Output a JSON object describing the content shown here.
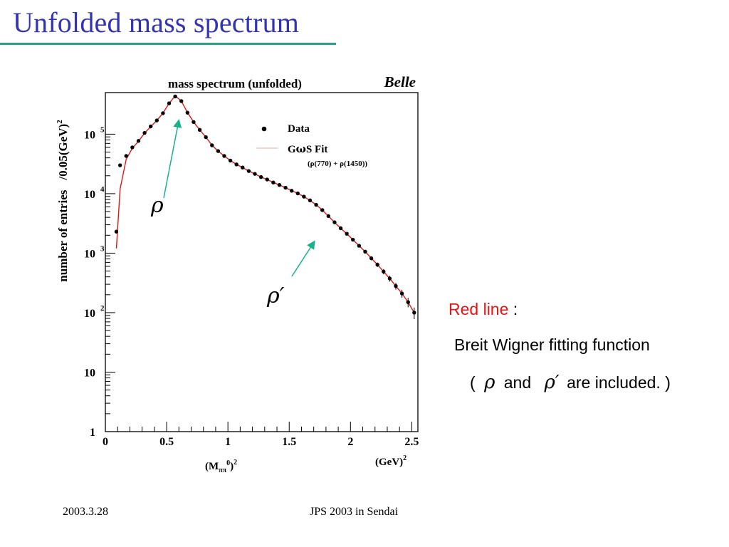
{
  "slide": {
    "title": "Unfolded mass spectrum",
    "footer_left": "2003.3.28",
    "footer_center": "JPS 2003 in Sendai"
  },
  "caption": {
    "line1_red": "Red line",
    "line1_rest": " :",
    "line2": "Breit Wigner fitting function",
    "line3_open": "(",
    "line3_rho": "ρ",
    "line3_and": "and",
    "line3_rhoprime": "ρ′",
    "line3_close": "are included. )"
  },
  "colors": {
    "title": "#3333b5",
    "rule": "#2aa089",
    "fit": "#e41414",
    "arrow": "#19b28a",
    "red_text": "#e41414"
  },
  "chart_data": {
    "type": "scatter",
    "title": "mass spectrum (unfolded)",
    "tag": "Belle",
    "ylabel_main": "number of entries",
    "ylabel_unit": "/0.05(GeV)",
    "ylabel_unit_sup": "2",
    "xlabel_left": "(M",
    "xlabel_sub": "ππ",
    "xlabel_sup0": "0",
    "xlabel_close": ")",
    "xlabel_sup2": "2",
    "xunit": "(GeV)",
    "xunit_sup": "2",
    "xlim": [
      0,
      2.55
    ],
    "ylim": [
      1,
      500000
    ],
    "yscale": "log",
    "grid": false,
    "x_ticks": [
      "0",
      "0.5",
      "1",
      "1.5",
      "2",
      "2.5"
    ],
    "x_tick_values": [
      0,
      0.5,
      1,
      1.5,
      2,
      2.5
    ],
    "y_ticks": [
      {
        "value": 1,
        "base": "1",
        "exp": ""
      },
      {
        "value": 10,
        "base": "10",
        "exp": ""
      },
      {
        "value": 100,
        "base": "10",
        "exp": "2"
      },
      {
        "value": 1000,
        "base": "10",
        "exp": "3"
      },
      {
        "value": 10000,
        "base": "10",
        "exp": "4"
      },
      {
        "value": 100000,
        "base": "10",
        "exp": "5"
      }
    ],
    "legend": {
      "position": "top-right",
      "data_label": "Data",
      "fit_label_pre": "G",
      "fit_label_omega": "ω",
      "fit_label_post": "S Fit",
      "fit_note": "(ρ(770) + ρ(1450))"
    },
    "annotations": [
      {
        "label": "ρ",
        "target_x": 0.58,
        "target_y": 220000
      },
      {
        "label": "ρ′",
        "target_x": 1.75,
        "target_y": 2700
      }
    ],
    "series": [
      {
        "name": "Data",
        "x": [
          0.09,
          0.12,
          0.17,
          0.22,
          0.27,
          0.32,
          0.37,
          0.42,
          0.47,
          0.52,
          0.57,
          0.62,
          0.67,
          0.72,
          0.77,
          0.82,
          0.87,
          0.92,
          0.97,
          1.02,
          1.07,
          1.12,
          1.17,
          1.22,
          1.27,
          1.32,
          1.37,
          1.42,
          1.47,
          1.52,
          1.57,
          1.62,
          1.67,
          1.72,
          1.77,
          1.82,
          1.87,
          1.92,
          1.97,
          2.02,
          2.07,
          2.12,
          2.17,
          2.22,
          2.27,
          2.32,
          2.37,
          2.42,
          2.47,
          2.52
        ],
        "y": [
          2300,
          30000,
          43000,
          60000,
          77000,
          105000,
          135000,
          170000,
          225000,
          330000,
          430000,
          360000,
          230000,
          160000,
          118000,
          89000,
          65000,
          52000,
          43000,
          36000,
          31000,
          27500,
          24000,
          21500,
          19000,
          17300,
          15400,
          14000,
          12600,
          11200,
          10100,
          8900,
          7700,
          6500,
          5300,
          4200,
          3300,
          2620,
          2120,
          1680,
          1330,
          1060,
          820,
          640,
          490,
          375,
          280,
          210,
          150,
          100
        ]
      },
      {
        "name": "GωS Fit",
        "x": [
          0.09,
          0.12,
          0.17,
          0.22,
          0.27,
          0.32,
          0.37,
          0.42,
          0.47,
          0.52,
          0.57,
          0.62,
          0.67,
          0.72,
          0.77,
          0.82,
          0.87,
          0.92,
          0.97,
          1.02,
          1.07,
          1.12,
          1.17,
          1.22,
          1.27,
          1.32,
          1.37,
          1.42,
          1.47,
          1.52,
          1.57,
          1.62,
          1.67,
          1.72,
          1.77,
          1.82,
          1.87,
          1.92,
          1.97,
          2.02,
          2.07,
          2.12,
          2.17,
          2.22,
          2.27,
          2.32,
          2.37,
          2.42,
          2.47,
          2.52
        ],
        "y": [
          1200,
          12000,
          38000,
          58000,
          76000,
          104000,
          134000,
          170000,
          226000,
          330000,
          440000,
          360000,
          232000,
          160000,
          118000,
          89000,
          65000,
          52000,
          43000,
          36000,
          31000,
          27500,
          24000,
          21500,
          19000,
          17300,
          15400,
          14000,
          12600,
          11200,
          10100,
          8900,
          7700,
          6500,
          5300,
          4200,
          3300,
          2620,
          2120,
          1680,
          1330,
          1060,
          820,
          640,
          490,
          375,
          280,
          210,
          150,
          100
        ]
      }
    ]
  }
}
